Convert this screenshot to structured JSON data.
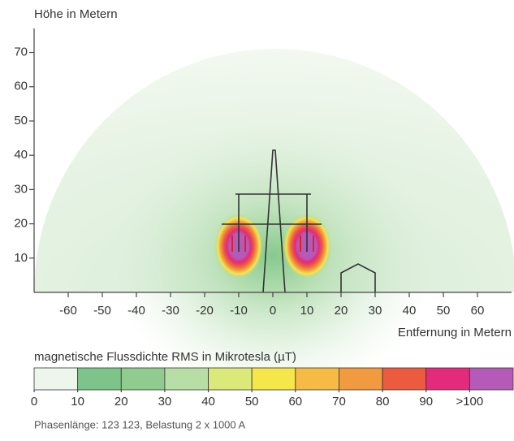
{
  "chart_data": {
    "type": "field",
    "y_label": "Höhe in Metern",
    "x_label": "Entfernung in Metern",
    "xlim": [
      -70,
      70
    ],
    "xticks": [
      -60,
      -50,
      -40,
      -30,
      -20,
      -10,
      0,
      10,
      20,
      30,
      40,
      50,
      60
    ],
    "ylim": [
      0,
      77
    ],
    "yticks": [
      10,
      20,
      30,
      40,
      50,
      60,
      70
    ],
    "colorbar": {
      "label": "magnetische Flussdichte RMS in Mikrotesla (µT)",
      "lim": [
        0,
        110
      ],
      "ticks": [
        0,
        10,
        20,
        30,
        40,
        50,
        60,
        70,
        80,
        90,
        {
          "value": 100,
          "label": ">100"
        }
      ],
      "colors": [
        "#eef6ec",
        "#7cc48a",
        "#8fcc8e",
        "#b7dea4",
        "#dbe87a",
        "#f5e64a",
        "#f6bb45",
        "#f19a40",
        "#ec5b3f",
        "#e42a7a",
        "#b65ab8"
      ]
    },
    "footnote": "Phasenlänge: 123 123, Belastung 2 x 1000 A"
  }
}
